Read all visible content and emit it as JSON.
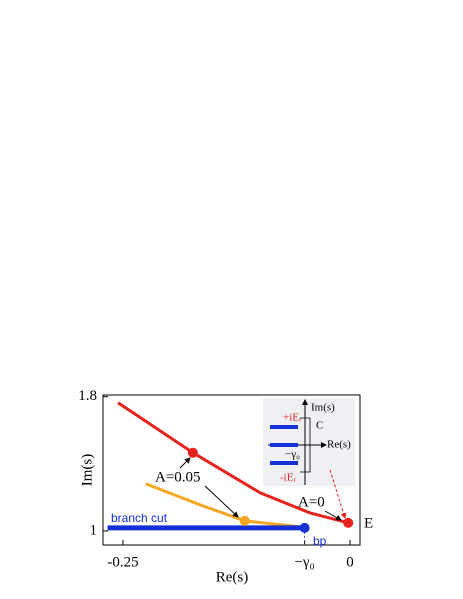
{
  "chart_data": {
    "type": "line",
    "x_label": "Re(s)",
    "y_label": "Im(s)",
    "xlim": [
      -0.272,
      0.011
    ],
    "xticks": [
      {
        "value": -0.25,
        "label": "-0.25"
      },
      {
        "value": -0.05,
        "label": "−γ₀"
      },
      0
    ],
    "ylim": [
      0.916,
      1.81
    ],
    "yticks": [
      1,
      1.8
    ],
    "series": [
      {
        "color": "#e8231e",
        "x": [
          -0.2555,
          -0.173,
          -0.099,
          -0.044,
          -0.002
        ],
        "values": [
          1.764,
          1.466,
          1.227,
          1.107,
          1.048
        ]
      },
      {
        "color": "#f5a623",
        "x": [
          -0.225,
          -0.165,
          -0.116,
          -0.055
        ],
        "values": [
          1.281,
          1.155,
          1.06,
          1.024
        ]
      },
      {
        "color": "#1431d6",
        "x": [
          -0.267,
          -0.05
        ],
        "values": [
          1.018,
          1.018
        ]
      }
    ],
    "points": [
      {
        "color": "#e8231e",
        "x": [
          -0.173,
          -0.002
        ],
        "values": [
          1.466,
          1.048
        ]
      },
      {
        "color": "#f5a623",
        "x": [
          -0.116
        ],
        "values": [
          1.06
        ]
      },
      {
        "color": "#1431d6",
        "x": [
          -0.05
        ],
        "values": [
          1.018
        ]
      }
    ],
    "annotations": [
      "A=0.05",
      "A=0",
      "E",
      "bp",
      "branch cut"
    ],
    "inset_labels": [
      "Im(s)",
      "+iEᵣ",
      "C",
      "Re(s)",
      "−γ₀",
      "-iEᵣ"
    ]
  }
}
